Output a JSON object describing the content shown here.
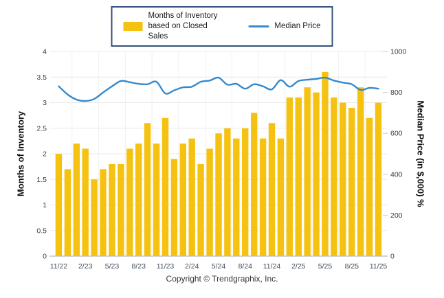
{
  "chart_data": {
    "type": "combo_bar_line",
    "categories": [
      "11/22",
      "12/22",
      "1/23",
      "2/23",
      "3/23",
      "4/23",
      "5/23",
      "6/23",
      "7/23",
      "8/23",
      "9/23",
      "10/23",
      "11/23",
      "12/23",
      "1/24",
      "2/24",
      "3/24",
      "4/24",
      "5/24",
      "6/24",
      "7/24",
      "8/24",
      "9/24",
      "10/24",
      "11/24",
      "12/24",
      "1/25",
      "2/25",
      "3/25",
      "4/25",
      "5/25",
      "6/25",
      "7/25",
      "8/25",
      "9/25",
      "10/25",
      "11/25"
    ],
    "x_tick_every": 3,
    "x_tick_labels": [
      "11/22",
      "2/23",
      "5/23",
      "8/23",
      "11/23",
      "2/24",
      "5/24",
      "8/24",
      "11/24",
      "2/25",
      "5/25",
      "8/25",
      "11/25"
    ],
    "series": [
      {
        "name": "Months of Inventory based on Closed Sales",
        "type": "bar",
        "axis": "left",
        "color": "#F5C211",
        "values": [
          2.0,
          1.7,
          2.2,
          2.1,
          1.5,
          1.7,
          1.8,
          1.8,
          2.1,
          2.2,
          2.6,
          2.2,
          2.7,
          1.9,
          2.2,
          2.3,
          1.8,
          2.1,
          2.4,
          2.5,
          2.3,
          2.5,
          2.8,
          2.3,
          2.6,
          2.3,
          3.1,
          3.1,
          3.3,
          3.2,
          3.6,
          3.1,
          3.0,
          2.9,
          3.3,
          2.7,
          3.0
        ]
      },
      {
        "name": "Median Price",
        "type": "line",
        "axis": "right",
        "color": "#3489CE",
        "values": [
          830,
          790,
          765,
          758,
          768,
          800,
          830,
          856,
          850,
          842,
          840,
          852,
          795,
          810,
          825,
          828,
          852,
          858,
          872,
          838,
          842,
          818,
          840,
          830,
          815,
          860,
          828,
          856,
          862,
          866,
          872,
          858,
          848,
          840,
          812,
          822,
          818
        ]
      }
    ],
    "axes": {
      "left": {
        "title": "Months of Inventory",
        "min": 0,
        "max": 4,
        "step": 0.5
      },
      "right": {
        "title": "Median Price (in $,000) %",
        "min": 0,
        "max": 1000,
        "step": 200
      }
    },
    "legend": {
      "position": "top-center"
    },
    "grid": {
      "horizontal": true,
      "vertical": true
    }
  },
  "legend": {
    "bar_label": "Months of Inventory based on Closed Sales",
    "line_label": "Median Price"
  },
  "axis_titles": {
    "left": "Months of Inventory",
    "right": "Median Price (in $,000) %"
  },
  "footer": {
    "copyright": "Copyright © Trendgraphix, Inc."
  }
}
